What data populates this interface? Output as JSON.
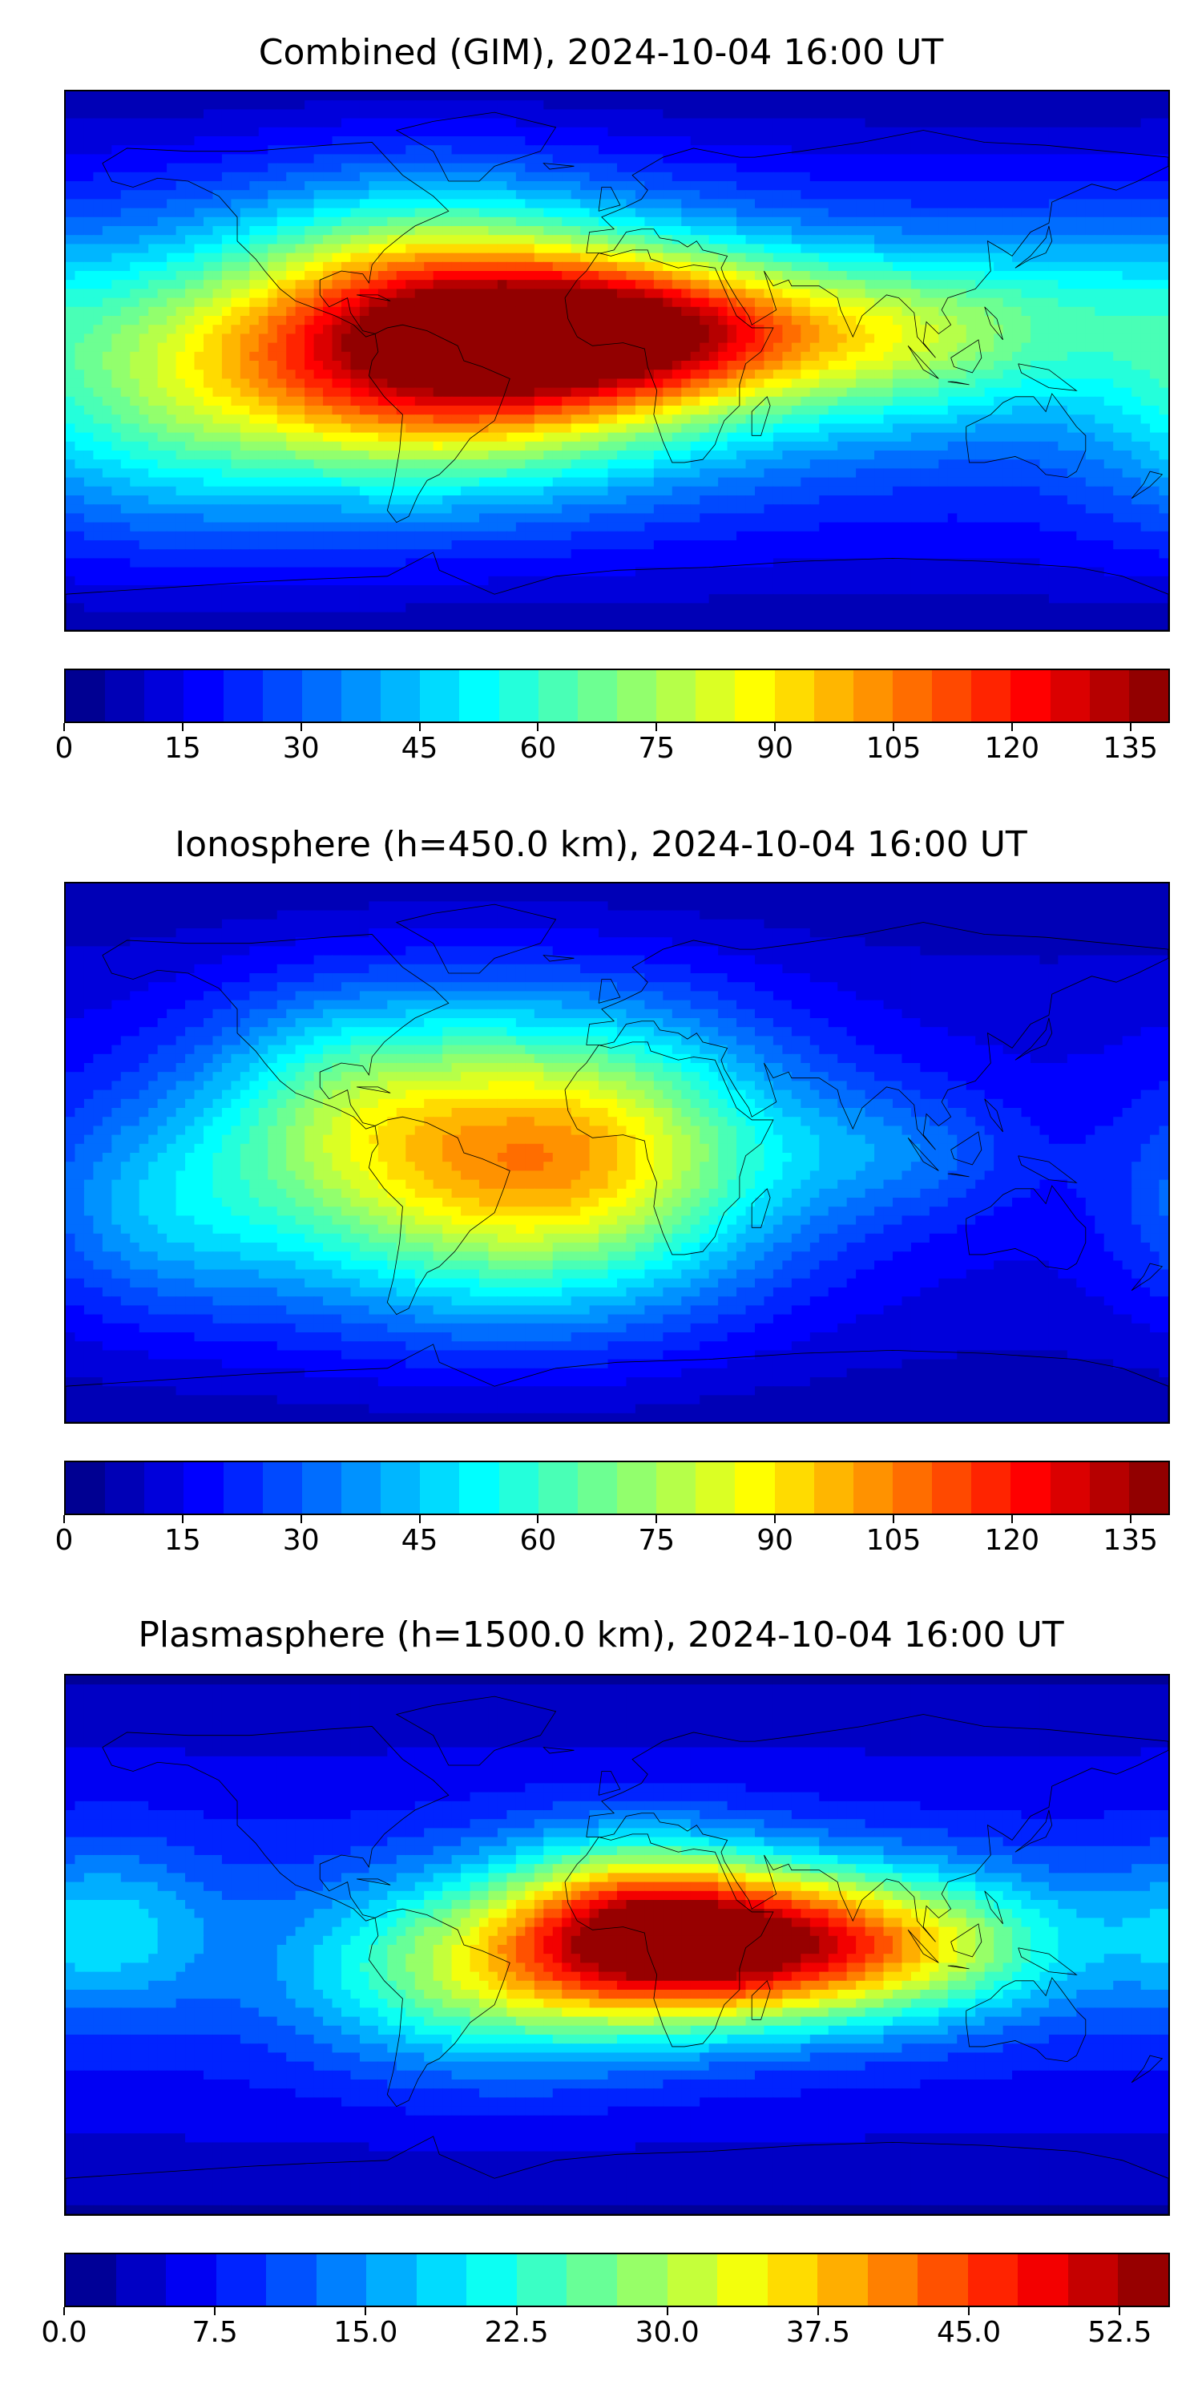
{
  "panels": [
    {
      "title": "Combined (GIM), 2024-10-04 16:00 UT",
      "colorbar": {
        "min": 0,
        "max": 140,
        "levels": 28,
        "ticks": [
          "0",
          "15",
          "30",
          "45",
          "60",
          "75",
          "90",
          "105",
          "120",
          "135"
        ],
        "tick_values": [
          0,
          15,
          30,
          45,
          60,
          75,
          90,
          105,
          120,
          135
        ]
      },
      "field": {
        "background": 25,
        "blobs": [
          {
            "lon": -45,
            "lat": 5,
            "amp": 90,
            "sx": 70,
            "sy": 28
          },
          {
            "lon": 10,
            "lat": 10,
            "amp": 60,
            "sx": 45,
            "sy": 16
          },
          {
            "lon": -65,
            "lat": 10,
            "amp": 30,
            "sx": 40,
            "sy": 35
          },
          {
            "lon": 100,
            "lat": 8,
            "amp": 35,
            "sx": 35,
            "sy": 20
          },
          {
            "lon": -150,
            "lat": -15,
            "amp": 25,
            "sx": 40,
            "sy": 30
          },
          {
            "lon": 150,
            "lat": 20,
            "amp": 15,
            "sx": 30,
            "sy": 20
          }
        ],
        "polar_drop": 20
      }
    },
    {
      "title": "Ionosphere  (h=450.0 km), 2024-10-04 16:00 UT",
      "colorbar": {
        "min": 0,
        "max": 140,
        "levels": 28,
        "ticks": [
          "0",
          "15",
          "30",
          "45",
          "60",
          "75",
          "90",
          "105",
          "120",
          "135"
        ],
        "tick_values": [
          0,
          15,
          30,
          45,
          60,
          75,
          90,
          105,
          120,
          135
        ]
      },
      "field": {
        "background": 15,
        "blobs": [
          {
            "lon": -40,
            "lat": -5,
            "amp": 70,
            "sx": 60,
            "sy": 35
          },
          {
            "lon": -5,
            "lat": 5,
            "amp": 25,
            "sx": 40,
            "sy": 30
          },
          {
            "lon": -90,
            "lat": 20,
            "amp": 20,
            "sx": 30,
            "sy": 25
          },
          {
            "lon": 90,
            "lat": 0,
            "amp": 15,
            "sx": 30,
            "sy": 15
          },
          {
            "lon": -150,
            "lat": -20,
            "amp": 20,
            "sx": 30,
            "sy": 25
          }
        ],
        "polar_drop": 10
      }
    },
    {
      "title": "Plasmasphere (h=1500.0 km), 2024-10-04 16:00 UT",
      "colorbar": {
        "min": 0,
        "max": 55,
        "levels": 22,
        "ticks": [
          "0.0",
          "7.5",
          "15.0",
          "22.5",
          "30.0",
          "37.5",
          "45.0",
          "52.5"
        ],
        "tick_values": [
          0,
          7.5,
          15,
          22.5,
          30,
          37.5,
          45,
          52.5
        ]
      },
      "field": {
        "background": 8,
        "blobs": [
          {
            "lon": 40,
            "lat": 0,
            "amp": 35,
            "sx": 40,
            "sy": 18
          },
          {
            "lon": -40,
            "lat": -8,
            "amp": 22,
            "sx": 45,
            "sy": 22
          },
          {
            "lon": 100,
            "lat": 0,
            "amp": 18,
            "sx": 40,
            "sy": 18
          },
          {
            "lon": 5,
            "lat": 10,
            "amp": 18,
            "sx": 30,
            "sy": 20
          },
          {
            "lon": -165,
            "lat": 5,
            "amp": 10,
            "sx": 25,
            "sy": 20
          }
        ],
        "polar_drop": 6
      }
    }
  ]
}
